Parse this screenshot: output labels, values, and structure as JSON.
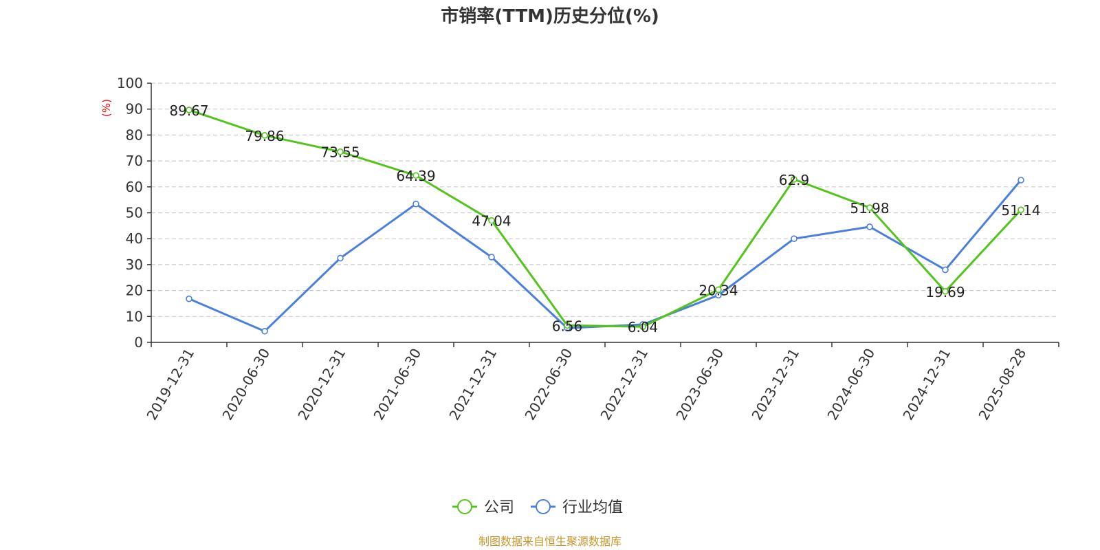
{
  "source_text": "制图数据来自恒生聚源数据库",
  "colors": {
    "company": "#52c41a",
    "industry": "#4a7fdc",
    "axis": "#333333",
    "grid": "#cccccc",
    "unit": "#ff0000",
    "source": "#c8962a"
  },
  "chart_data": {
    "type": "line",
    "title": "市销率(TTM)历史分位(%)",
    "ylabel": "(%)",
    "xlabel": "",
    "ylim": [
      0,
      100
    ],
    "yticks": [
      0,
      10,
      20,
      30,
      40,
      50,
      60,
      70,
      80,
      90,
      100
    ],
    "grid": true,
    "legend_position": "bottom-center",
    "categories": [
      "2019-12-31",
      "2020-06-30",
      "2020-12-31",
      "2021-06-30",
      "2021-12-31",
      "2022-06-30",
      "2022-12-31",
      "2023-06-30",
      "2023-12-31",
      "2024-06-30",
      "2024-12-31",
      "2025-08-28"
    ],
    "series": [
      {
        "name": "公司",
        "color": "#52c41a",
        "show_labels": true,
        "values": [
          89.67,
          79.86,
          73.55,
          64.39,
          47.04,
          6.56,
          6.04,
          20.34,
          62.9,
          51.98,
          19.69,
          51.14
        ],
        "labels": [
          "89.67",
          "79.86",
          "73.55",
          "64.39",
          "47.04",
          "6.56",
          "6.04",
          "20.34",
          "62.9",
          "51.98",
          "19.69",
          "51.14"
        ]
      },
      {
        "name": "行业均值",
        "color": "#4a7fdc",
        "show_labels": false,
        "values": [
          16.8,
          4.3,
          32.5,
          53.4,
          32.9,
          5.5,
          6.9,
          18.2,
          40.0,
          44.6,
          28.0,
          62.6
        ]
      }
    ]
  }
}
